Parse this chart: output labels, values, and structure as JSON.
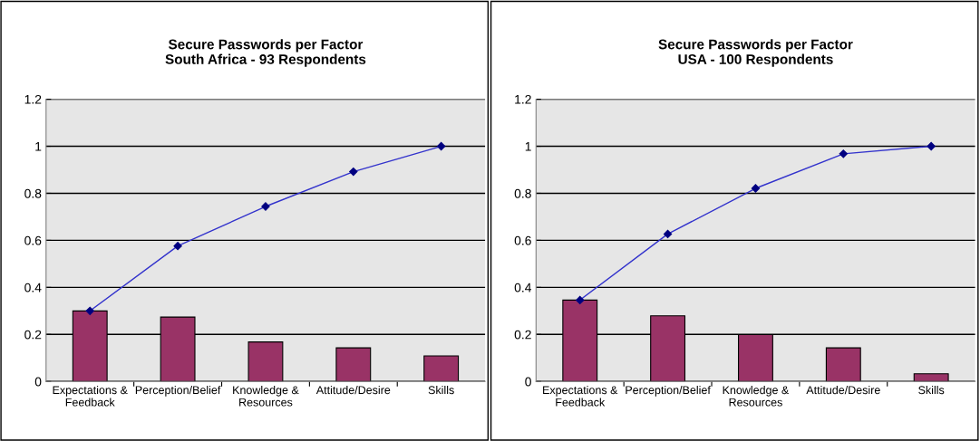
{
  "chart_data": [
    {
      "type": "bar",
      "title": "Secure Passwords per Factor\nSouth Africa - 93 Respondents",
      "categories": [
        "Expectations &\nFeedback",
        "Perception/Belief",
        "Knowledge &\nResources",
        "Attitude/Desire",
        "Skills"
      ],
      "series": [
        {
          "color": "#993366",
          "values": [
            0.3,
            0.274,
            0.168,
            0.143,
            0.109
          ]
        },
        {
          "type": "line",
          "color": "#3333cc",
          "marker": "diamond",
          "values": [
            0.3,
            0.576,
            0.744,
            0.892,
            1.0
          ]
        }
      ],
      "ylim": [
        0,
        1.2
      ],
      "yticks": [
        0,
        0.2,
        0.4,
        0.6,
        0.8,
        1,
        1.2
      ],
      "grid": "y"
    },
    {
      "type": "bar",
      "title": "Secure Passwords per Factor\nUSA - 100 Respondents",
      "categories": [
        "Expectations &\nFeedback",
        "Perception/Belief",
        "Knowledge &\nResources",
        "Attitude/Desire",
        "Skills"
      ],
      "series": [
        {
          "color": "#993366",
          "values": [
            0.346,
            0.279,
            0.199,
            0.143,
            0.033
          ]
        },
        {
          "type": "line",
          "color": "#3333cc",
          "marker": "diamond",
          "values": [
            0.346,
            0.627,
            0.821,
            0.968,
            1.0
          ]
        }
      ],
      "ylim": [
        0,
        1.2
      ],
      "yticks": [
        0,
        0.2,
        0.4,
        0.6,
        0.8,
        1,
        1.2
      ],
      "grid": "y"
    }
  ]
}
